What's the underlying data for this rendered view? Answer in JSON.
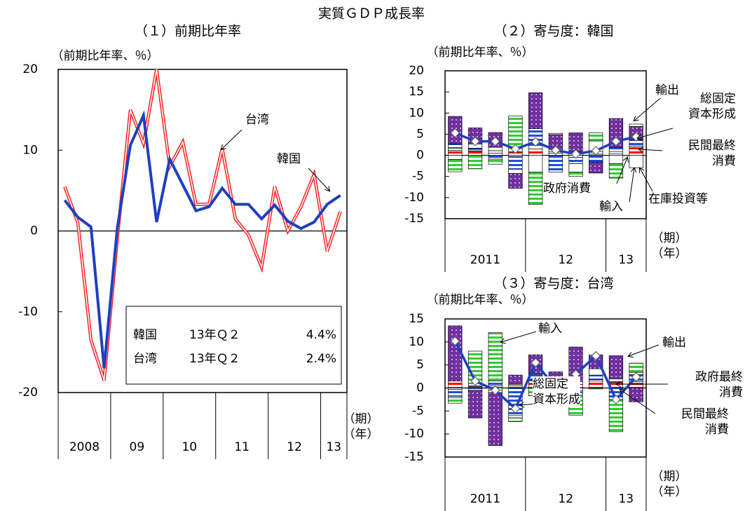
{
  "title": "実質ＧＤＰ成長率",
  "chart_data": [
    {
      "type": "line",
      "title": "（１）前期比年率",
      "ylabel": "（前期比年率、％）",
      "categories": [
        "2008",
        null,
        null,
        null,
        "09",
        null,
        null,
        null,
        "10",
        null,
        null,
        null,
        "11",
        null,
        null,
        null,
        "12",
        null,
        null,
        null,
        "13",
        null
      ],
      "series": [
        {
          "name": "韓国",
          "color": "#1f3fbf",
          "style": "solid",
          "values": [
            3.8,
            1.7,
            0.5,
            -17.0,
            0.3,
            10.6,
            14.3,
            1.1,
            8.9,
            5.7,
            2.5,
            3.0,
            5.3,
            3.3,
            3.3,
            1.5,
            3.2,
            1.2,
            0.3,
            1.1,
            3.3,
            4.4
          ]
        },
        {
          "name": "台湾",
          "color": "#ff1a1a",
          "style": "double",
          "values": [
            5.5,
            1.0,
            -13.5,
            -18.5,
            -1.0,
            15.0,
            10.8,
            20.0,
            8.0,
            11.0,
            3.3,
            3.3,
            10.2,
            1.5,
            -0.5,
            -4.5,
            5.5,
            0.0,
            3.0,
            7.0,
            -2.5,
            2.4
          ]
        }
      ],
      "ylim": [
        -20,
        20
      ],
      "yticks": [
        -20,
        -10,
        0,
        10,
        20
      ],
      "legend_table": {
        "rows": [
          [
            "韓国",
            "13年Ｑ２",
            "4.4%"
          ],
          [
            "台湾",
            "13年Ｑ２",
            "2.4%"
          ]
        ]
      },
      "x_unit_labels": [
        "（期）",
        "（年）"
      ]
    },
    {
      "type": "stacked_bar",
      "title": "（２）寄与度：韓国",
      "ylabel": "（前期比年率、％）",
      "categories": [
        "2011",
        null,
        null,
        null,
        "12",
        null,
        null,
        null,
        "13",
        null
      ],
      "series": [
        {
          "name": "民間最終\n消費",
          "color": "#ff0000",
          "fill": "hlines",
          "values": [
            1.2,
            1.0,
            0.5,
            0.8,
            1.5,
            0.5,
            0.8,
            0.3,
            0.4,
            1.8
          ]
        },
        {
          "name": "政府消費",
          "color": "#ffffff",
          "fill": "solid",
          "values": [
            0.5,
            0.3,
            0.6,
            -0.3,
            0.8,
            0.4,
            -0.5,
            0.6,
            0.5,
            0.4
          ]
        },
        {
          "name": "総固定\n資本形成",
          "color": "#1f4fd8",
          "fill": "hlines",
          "values": [
            1.0,
            0.4,
            -0.9,
            -3.0,
            4.0,
            -4.0,
            -1.5,
            -1.6,
            1.0,
            1.4
          ]
        },
        {
          "name": "在庫投資等",
          "color": "#ffffff",
          "fill": "solid",
          "values": [
            -1.0,
            1.0,
            0.8,
            -1.0,
            -4.0,
            0.5,
            -2.0,
            2.5,
            -2.0,
            -3.0
          ]
        },
        {
          "name": "輸出",
          "color": "#7030a0",
          "fill": "dots",
          "values": [
            6.5,
            3.8,
            3.5,
            -3.5,
            8.5,
            3.5,
            4.5,
            -2.6,
            6.8,
            3.2
          ]
        },
        {
          "name": "輸入",
          "color": "#33cc33",
          "fill": "hlines",
          "values": [
            -2.9,
            -3.2,
            -1.2,
            8.5,
            -7.6,
            0.3,
            -1.0,
            1.9,
            -3.4,
            0.6
          ]
        }
      ],
      "line": {
        "color": "#1f3fbf",
        "values": [
          5.3,
          3.3,
          3.3,
          1.5,
          3.2,
          1.2,
          0.3,
          1.1,
          3.3,
          4.4
        ]
      },
      "ylim": [
        -15,
        20
      ],
      "yticks": [
        -15,
        -10,
        -5,
        0,
        5,
        10,
        15,
        20
      ],
      "x_unit_labels": [
        "（期）",
        "（年）"
      ]
    },
    {
      "type": "stacked_bar",
      "title": "（３）寄与度：台湾",
      "ylabel": "（前期比年率、％）",
      "categories": [
        "2011",
        null,
        null,
        null,
        "12",
        null,
        null,
        null,
        "13",
        null
      ],
      "series": [
        {
          "name": "民間最終\n消費",
          "color": "#ff0000",
          "fill": "hlines",
          "values": [
            1.5,
            0.3,
            0.5,
            0.5,
            1.0,
            0.6,
            0.8,
            1.5,
            1.2,
            1.0
          ]
        },
        {
          "name": "政府最終\n消費",
          "color": "#ffffff",
          "fill": "solid",
          "values": [
            -0.3,
            0.2,
            -0.5,
            0.3,
            0.5,
            0.3,
            -0.5,
            0.3,
            0.2,
            0.4
          ]
        },
        {
          "name": "総固定\n資本形成",
          "color": "#1f4fd8",
          "fill": "hlines",
          "values": [
            -1.5,
            -0.5,
            1.0,
            -6.0,
            1.5,
            0.8,
            -1.0,
            1.0,
            -2.5,
            1.5
          ]
        },
        {
          "color": "#ffffff",
          "fill": "solid",
          "values": [
            -0.3,
            0.5,
            -0.5,
            -0.5,
            0.2,
            0.3,
            0.6,
            1.4,
            0.6,
            0.5
          ]
        },
        {
          "name": "輸出",
          "color": "#7030a0",
          "fill": "dots",
          "values": [
            12.0,
            -6.0,
            -11.5,
            2.0,
            4.0,
            1.5,
            7.5,
            3.0,
            5.0,
            -3.0
          ]
        },
        {
          "name": "輸入",
          "color": "#33cc33",
          "fill": "hlines",
          "values": [
            -1.2,
            7.0,
            10.5,
            -0.8,
            -1.7,
            -3.5,
            -4.4,
            -0.2,
            -7.0,
            2.0
          ]
        }
      ],
      "line": {
        "color": "#1f3fbf",
        "values": [
          10.2,
          1.5,
          -0.5,
          -4.5,
          5.5,
          0.0,
          3.0,
          7.0,
          -2.5,
          2.4
        ]
      },
      "ylim": [
        -15,
        15
      ],
      "yticks": [
        -15,
        -10,
        -5,
        0,
        5,
        10,
        15
      ],
      "x_unit_labels": [
        "（期）",
        "（年）"
      ]
    }
  ]
}
